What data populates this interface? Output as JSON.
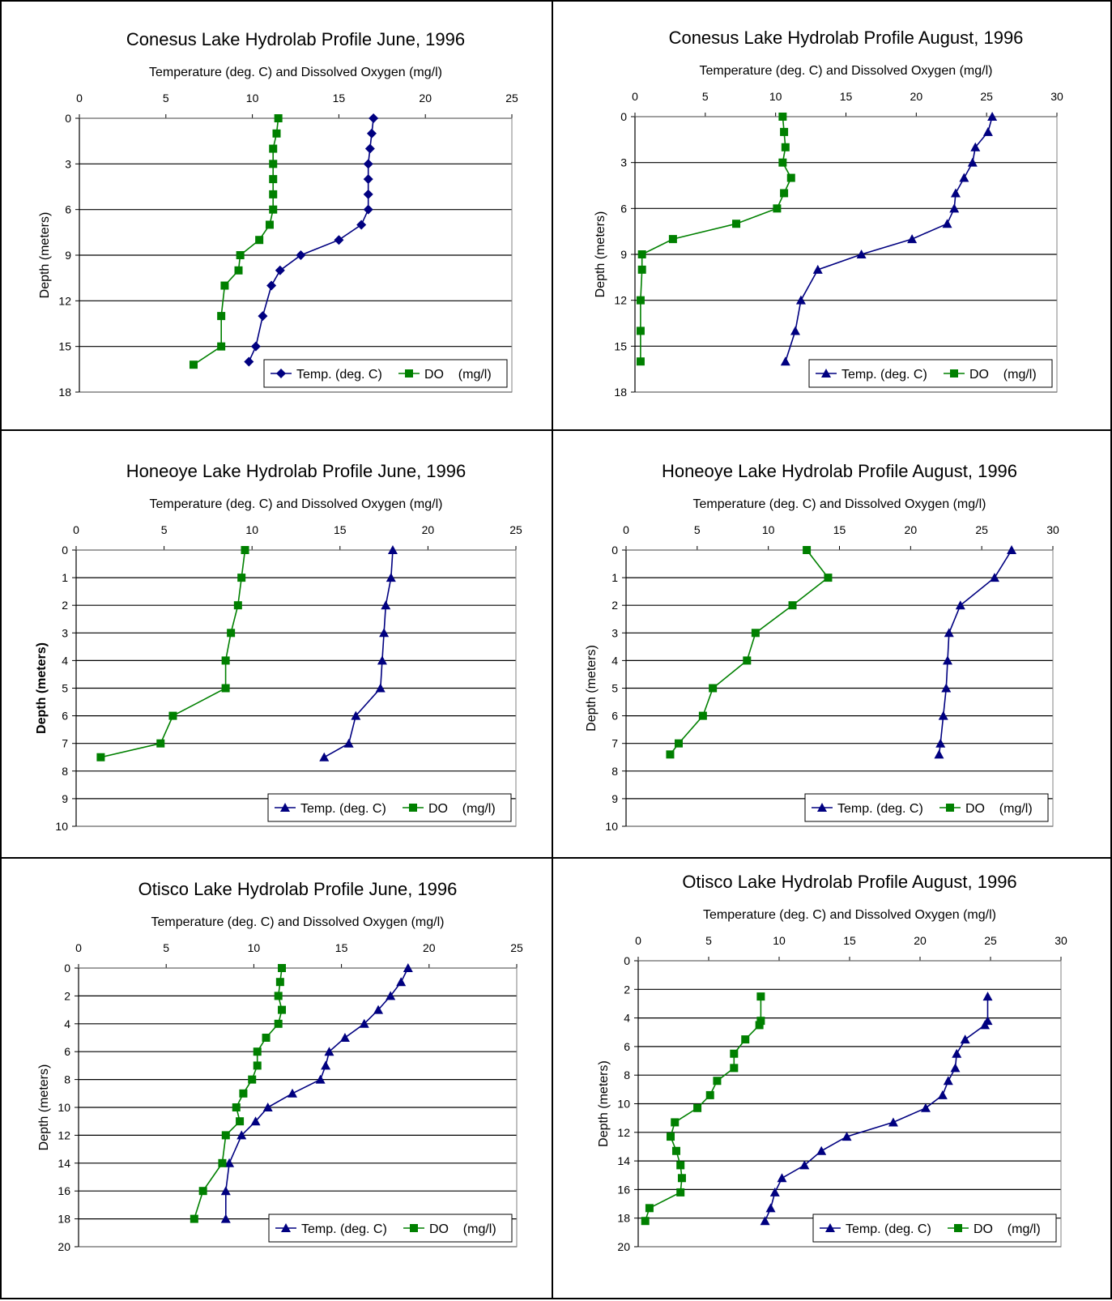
{
  "chart_data": [
    {
      "type": "line",
      "title": "Conesus Lake Hydrolab Profile June, 1996",
      "xlabel": "Temperature (deg. C) and Dissolved Oxygen (mg/l)",
      "ylabel": "Depth (meters)",
      "ylabel_bold": false,
      "xlim": [
        0,
        25
      ],
      "xticks": [
        0,
        5,
        10,
        15,
        20,
        25
      ],
      "ylim": [
        0,
        18
      ],
      "yticks": [
        0,
        3,
        6,
        9,
        12,
        15,
        18
      ],
      "grid": "horizontal",
      "legend": "bottom-right",
      "series": [
        {
          "name": "Temp. (deg. C)",
          "marker": "diamond",
          "color": "#000080",
          "points": [
            [
              17.0,
              0
            ],
            [
              16.9,
              1
            ],
            [
              16.8,
              2
            ],
            [
              16.7,
              3
            ],
            [
              16.7,
              4
            ],
            [
              16.7,
              5
            ],
            [
              16.7,
              6
            ],
            [
              16.3,
              7
            ],
            [
              15.0,
              8
            ],
            [
              12.8,
              9
            ],
            [
              11.6,
              10
            ],
            [
              11.1,
              11
            ],
            [
              10.6,
              13
            ],
            [
              10.2,
              15
            ],
            [
              9.8,
              16
            ]
          ]
        },
        {
          "name": "DO    (mg/l)",
          "marker": "square",
          "color": "#008000",
          "points": [
            [
              11.5,
              0
            ],
            [
              11.4,
              1
            ],
            [
              11.2,
              2
            ],
            [
              11.2,
              3
            ],
            [
              11.2,
              4
            ],
            [
              11.2,
              5
            ],
            [
              11.2,
              6
            ],
            [
              11.0,
              7
            ],
            [
              10.4,
              8
            ],
            [
              9.3,
              9
            ],
            [
              9.2,
              10
            ],
            [
              8.4,
              11
            ],
            [
              8.2,
              13
            ],
            [
              8.2,
              15
            ],
            [
              6.6,
              16.2
            ]
          ]
        }
      ]
    },
    {
      "type": "line",
      "title": "Conesus Lake Hydrolab Profile August, 1996",
      "xlabel": "Temperature (deg. C) and Dissolved Oxygen (mg/l)",
      "ylabel": "Depth (meters)",
      "ylabel_bold": false,
      "xlim": [
        0,
        30
      ],
      "xticks": [
        0,
        5,
        10,
        15,
        20,
        25,
        30
      ],
      "ylim": [
        0,
        18
      ],
      "yticks": [
        0,
        3,
        6,
        9,
        12,
        15,
        18
      ],
      "grid": "horizontal",
      "legend": "bottom-right",
      "series": [
        {
          "name": "Temp. (deg. C)",
          "marker": "triangle",
          "color": "#000080",
          "points": [
            [
              25.4,
              0
            ],
            [
              25.1,
              1
            ],
            [
              24.2,
              2
            ],
            [
              24.0,
              3
            ],
            [
              23.4,
              4
            ],
            [
              22.8,
              5
            ],
            [
              22.7,
              6
            ],
            [
              22.2,
              7
            ],
            [
              19.7,
              8
            ],
            [
              16.1,
              9
            ],
            [
              13.0,
              10
            ],
            [
              11.8,
              12
            ],
            [
              11.4,
              14
            ],
            [
              10.7,
              16
            ]
          ]
        },
        {
          "name": "DO    (mg/l)",
          "marker": "square",
          "color": "#008000",
          "points": [
            [
              10.5,
              0
            ],
            [
              10.6,
              1
            ],
            [
              10.7,
              2
            ],
            [
              10.5,
              3
            ],
            [
              11.1,
              4
            ],
            [
              10.6,
              5
            ],
            [
              10.1,
              6
            ],
            [
              7.2,
              7
            ],
            [
              2.7,
              8
            ],
            [
              0.5,
              9
            ],
            [
              0.5,
              10
            ],
            [
              0.4,
              12
            ],
            [
              0.4,
              14
            ],
            [
              0.4,
              16
            ]
          ]
        }
      ]
    },
    {
      "type": "line",
      "title": "Honeoye Lake Hydrolab Profile June, 1996",
      "xlabel": "Temperature (deg. C) and Dissolved Oxygen (mg/l)",
      "ylabel": "Depth (meters)",
      "ylabel_bold": true,
      "xlim": [
        0,
        25
      ],
      "xticks": [
        0,
        5,
        10,
        15,
        20,
        25
      ],
      "ylim": [
        0,
        10
      ],
      "yticks": [
        0,
        1,
        2,
        3,
        4,
        5,
        6,
        7,
        8,
        9,
        10
      ],
      "grid": "horizontal",
      "legend": "bottom-right",
      "series": [
        {
          "name": "Temp. (deg. C)",
          "marker": "triangle",
          "color": "#000080",
          "points": [
            [
              18.0,
              0
            ],
            [
              17.9,
              1
            ],
            [
              17.6,
              2
            ],
            [
              17.5,
              3
            ],
            [
              17.4,
              4
            ],
            [
              17.3,
              5
            ],
            [
              15.9,
              6
            ],
            [
              15.5,
              7
            ],
            [
              14.1,
              7.5
            ]
          ]
        },
        {
          "name": "DO    (mg/l)",
          "marker": "square",
          "color": "#008000",
          "points": [
            [
              9.6,
              0
            ],
            [
              9.4,
              1
            ],
            [
              9.2,
              2
            ],
            [
              8.8,
              3
            ],
            [
              8.5,
              4
            ],
            [
              8.5,
              5
            ],
            [
              5.5,
              6
            ],
            [
              4.8,
              7
            ],
            [
              1.4,
              7.5
            ]
          ]
        }
      ]
    },
    {
      "type": "line",
      "title": "Honeoye Lake Hydrolab Profile August, 1996",
      "xlabel": "Temperature (deg. C) and Dissolved Oxygen (mg/l)",
      "ylabel": "Depth (meters)",
      "ylabel_bold": false,
      "xlim": [
        0,
        30
      ],
      "xticks": [
        0,
        5,
        10,
        15,
        20,
        25,
        30
      ],
      "ylim": [
        0,
        10
      ],
      "yticks": [
        0,
        1,
        2,
        3,
        4,
        5,
        6,
        7,
        8,
        9,
        10
      ],
      "grid": "horizontal",
      "legend": "bottom-right",
      "series": [
        {
          "name": "Temp. (deg. C)",
          "marker": "triangle",
          "color": "#000080",
          "points": [
            [
              27.1,
              0
            ],
            [
              25.9,
              1
            ],
            [
              23.5,
              2
            ],
            [
              22.7,
              3
            ],
            [
              22.6,
              4
            ],
            [
              22.5,
              5
            ],
            [
              22.3,
              6
            ],
            [
              22.1,
              7
            ],
            [
              22.0,
              7.4
            ]
          ]
        },
        {
          "name": "DO    (mg/l)",
          "marker": "square",
          "color": "#008000",
          "points": [
            [
              12.7,
              0
            ],
            [
              14.2,
              1
            ],
            [
              11.7,
              2
            ],
            [
              9.1,
              3
            ],
            [
              8.5,
              4
            ],
            [
              6.1,
              5
            ],
            [
              5.4,
              6
            ],
            [
              3.7,
              7
            ],
            [
              3.1,
              7.4
            ]
          ]
        }
      ]
    },
    {
      "type": "line",
      "title": "Otisco Lake Hydrolab Profile June, 1996",
      "xlabel": "Temperature (deg. C) and Dissolved Oxygen (mg/l)",
      "ylabel": "Depth (meters)",
      "ylabel_bold": false,
      "xlim": [
        0,
        25
      ],
      "xticks": [
        0,
        5,
        10,
        15,
        20,
        25
      ],
      "ylim": [
        0,
        20
      ],
      "yticks": [
        0,
        2,
        4,
        6,
        8,
        10,
        12,
        14,
        16,
        18,
        20
      ],
      "grid": "horizontal",
      "legend": "bottom-right",
      "series": [
        {
          "name": "Temp. (deg. C)",
          "marker": "triangle",
          "color": "#000080",
          "points": [
            [
              18.8,
              0
            ],
            [
              18.4,
              1
            ],
            [
              17.8,
              2
            ],
            [
              17.1,
              3
            ],
            [
              16.3,
              4
            ],
            [
              15.2,
              5
            ],
            [
              14.3,
              6
            ],
            [
              14.1,
              7
            ],
            [
              13.8,
              8
            ],
            [
              12.2,
              9
            ],
            [
              10.8,
              10
            ],
            [
              10.1,
              11
            ],
            [
              9.3,
              12
            ],
            [
              8.6,
              14
            ],
            [
              8.4,
              16
            ],
            [
              8.4,
              18
            ]
          ]
        },
        {
          "name": "DO    (mg/l)",
          "marker": "square",
          "color": "#008000",
          "points": [
            [
              11.6,
              0
            ],
            [
              11.5,
              1
            ],
            [
              11.4,
              2
            ],
            [
              11.6,
              3
            ],
            [
              11.4,
              4
            ],
            [
              10.7,
              5
            ],
            [
              10.2,
              6
            ],
            [
              10.2,
              7
            ],
            [
              9.9,
              8
            ],
            [
              9.4,
              9
            ],
            [
              9.0,
              10
            ],
            [
              9.2,
              11
            ],
            [
              8.4,
              12
            ],
            [
              8.2,
              14
            ],
            [
              7.1,
              16
            ],
            [
              6.6,
              18
            ]
          ]
        }
      ]
    },
    {
      "type": "line",
      "title": "Otisco Lake Hydrolab Profile August, 1996",
      "xlabel": "Temperature (deg. C) and Dissolved Oxygen (mg/l)",
      "ylabel": "Depth (meters)",
      "ylabel_bold": false,
      "xlim": [
        0,
        30
      ],
      "xticks": [
        0,
        5,
        10,
        15,
        20,
        25,
        30
      ],
      "ylim": [
        0,
        20
      ],
      "yticks": [
        0,
        2,
        4,
        6,
        8,
        10,
        12,
        14,
        16,
        18,
        20
      ],
      "grid": "horizontal",
      "legend": "bottom-right",
      "series": [
        {
          "name": "Temp. (deg. C)",
          "marker": "triangle",
          "color": "#000080",
          "points": [
            [
              24.8,
              2.5
            ],
            [
              24.8,
              4.2
            ],
            [
              24.6,
              4.5
            ],
            [
              23.2,
              5.5
            ],
            [
              22.6,
              6.5
            ],
            [
              22.5,
              7.5
            ],
            [
              22.0,
              8.4
            ],
            [
              21.6,
              9.4
            ],
            [
              20.4,
              10.3
            ],
            [
              18.1,
              11.3
            ],
            [
              14.8,
              12.3
            ],
            [
              13.0,
              13.3
            ],
            [
              11.8,
              14.3
            ],
            [
              10.2,
              15.2
            ],
            [
              9.7,
              16.2
            ],
            [
              9.4,
              17.3
            ],
            [
              9.0,
              18.2
            ]
          ]
        },
        {
          "name": "DO    (mg/l)",
          "marker": "square",
          "color": "#008000",
          "points": [
            [
              8.7,
              2.5
            ],
            [
              8.7,
              4.2
            ],
            [
              8.6,
              4.5
            ],
            [
              7.6,
              5.5
            ],
            [
              6.8,
              6.5
            ],
            [
              6.8,
              7.5
            ],
            [
              5.6,
              8.4
            ],
            [
              5.1,
              9.4
            ],
            [
              4.2,
              10.3
            ],
            [
              2.6,
              11.3
            ],
            [
              2.3,
              12.3
            ],
            [
              2.7,
              13.3
            ],
            [
              3.0,
              14.3
            ],
            [
              3.1,
              15.2
            ],
            [
              3.0,
              16.2
            ],
            [
              0.8,
              17.3
            ],
            [
              0.5,
              18.2
            ]
          ]
        }
      ]
    }
  ]
}
